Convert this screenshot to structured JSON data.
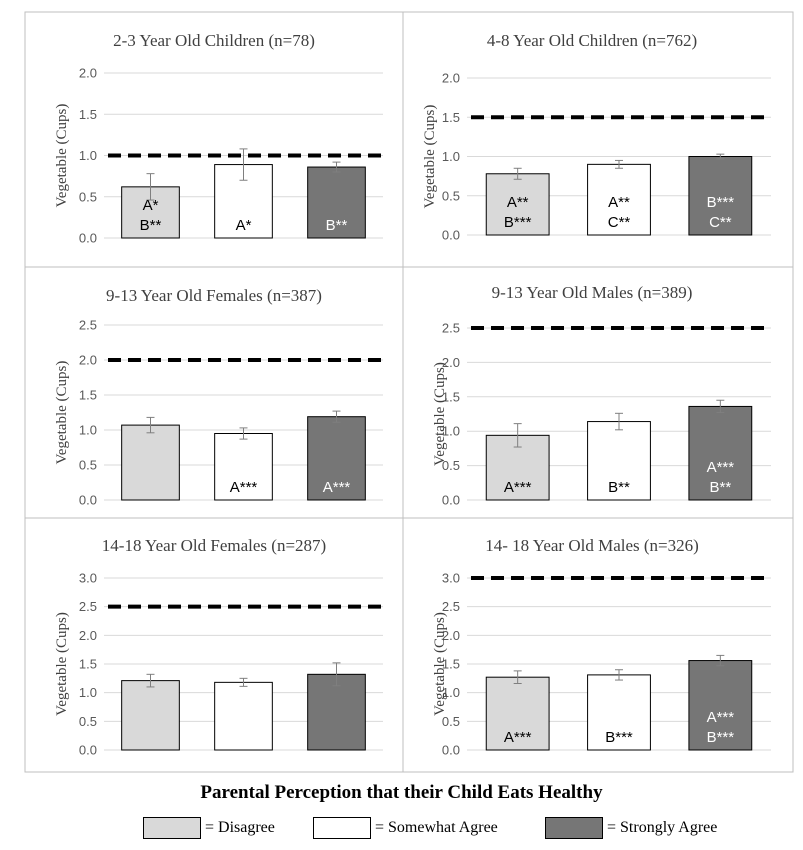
{
  "colors": {
    "disagree": "#d9d9d9",
    "somewhat": "#ffffff",
    "strongly": "#767676",
    "border": "#000000",
    "reference_line": "#000000"
  },
  "footer": {
    "title": "Parental Perception that their Child Eats Healthy"
  },
  "legend": [
    {
      "label": "= Disagree",
      "color": "#d9d9d9"
    },
    {
      "label": "= Somewhat Agree",
      "color": "#ffffff"
    },
    {
      "label": "= Strongly Agree",
      "color": "#767676"
    }
  ],
  "chart_data": [
    {
      "type": "bar",
      "title": "2-3 Year Old Children (n=78)",
      "ylabel": "Vegetable (Cups)",
      "ylim": [
        0,
        2.0
      ],
      "yticks": [
        "0.0",
        "0.5",
        "1.0",
        "1.5",
        "2.0"
      ],
      "reference_line": 1.0,
      "categories": [
        "Disagree",
        "Somewhat Agree",
        "Strongly Agree"
      ],
      "values": [
        0.62,
        0.89,
        0.86
      ],
      "errors": [
        0.16,
        0.19,
        0.06
      ],
      "bar_labels": [
        [
          "A*",
          "B**"
        ],
        [
          "A*"
        ],
        [
          "B**"
        ]
      ]
    },
    {
      "type": "bar",
      "title": "4-8 Year Old Children (n=762)",
      "ylabel": "Vegetable (Cups)",
      "ylim": [
        0,
        2.0
      ],
      "yticks": [
        "0.0",
        "0.5",
        "1.0",
        "1.5",
        "2.0"
      ],
      "reference_line": 1.5,
      "categories": [
        "Disagree",
        "Somewhat Agree",
        "Strongly Agree"
      ],
      "values": [
        0.78,
        0.9,
        1.0
      ],
      "errors": [
        0.07,
        0.05,
        0.03
      ],
      "bar_labels": [
        [
          "A**",
          "B***"
        ],
        [
          "A**",
          "C**"
        ],
        [
          "B***",
          "C**"
        ]
      ]
    },
    {
      "type": "bar",
      "title": "9-13 Year Old Females (n=387)",
      "ylabel": "Vegetable (Cups)",
      "ylim": [
        0,
        2.5
      ],
      "yticks": [
        "0.0",
        "0.5",
        "1.0",
        "1.5",
        "2.0",
        "2.5"
      ],
      "reference_line": 2.0,
      "categories": [
        "Disagree",
        "Somewhat Agree",
        "Strongly Agree"
      ],
      "values": [
        1.07,
        0.95,
        1.19
      ],
      "errors": [
        0.11,
        0.08,
        0.08
      ],
      "bar_labels": [
        [],
        [
          "A***"
        ],
        [
          "A***"
        ]
      ]
    },
    {
      "type": "bar",
      "title": "9-13 Year Old Males (n=389)",
      "ylabel": "Vegetable (Cups)",
      "ylim": [
        0,
        2.5
      ],
      "yticks": [
        "0.0",
        "0.5",
        "1.0",
        "1.5",
        "2.0",
        "2.5"
      ],
      "reference_line": 2.5,
      "categories": [
        "Disagree",
        "Somewhat Agree",
        "Strongly Agree"
      ],
      "values": [
        0.94,
        1.14,
        1.36
      ],
      "errors": [
        0.17,
        0.12,
        0.09
      ],
      "bar_labels": [
        [
          "A***"
        ],
        [
          "B**"
        ],
        [
          "A***",
          "B**"
        ]
      ]
    },
    {
      "type": "bar",
      "title": "14-18 Year Old Females (n=287)",
      "ylabel": "Vegetable (Cups)",
      "ylim": [
        0,
        3.0
      ],
      "yticks": [
        "0.0",
        "0.5",
        "1.0",
        "1.5",
        "2.0",
        "2.5",
        "3.0"
      ],
      "reference_line": 2.5,
      "categories": [
        "Disagree",
        "Somewhat Agree",
        "Strongly Agree"
      ],
      "values": [
        1.21,
        1.18,
        1.32
      ],
      "errors": [
        0.11,
        0.07,
        0.2
      ],
      "bar_labels": [
        [],
        [],
        []
      ]
    },
    {
      "type": "bar",
      "title": "14- 18 Year Old Males (n=326)",
      "ylabel": "Vegetable (Cups)",
      "ylim": [
        0,
        3.0
      ],
      "yticks": [
        "0.0",
        "0.5",
        "1.0",
        "1.5",
        "2.0",
        "2.5",
        "3.0"
      ],
      "reference_line": 3.0,
      "categories": [
        "Disagree",
        "Somewhat Agree",
        "Strongly Agree"
      ],
      "values": [
        1.27,
        1.31,
        1.56
      ],
      "errors": [
        0.11,
        0.09,
        0.09
      ],
      "bar_labels": [
        [
          "A***"
        ],
        [
          "B***"
        ],
        [
          "A***",
          "B***"
        ]
      ]
    }
  ]
}
